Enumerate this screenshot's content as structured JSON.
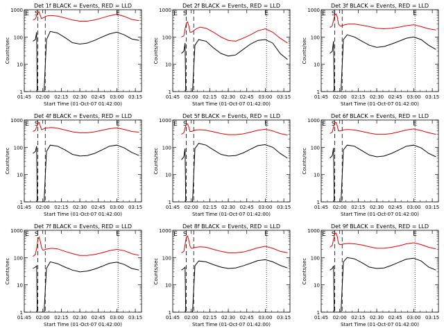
{
  "figure": {
    "ylabel": "Counts/sec",
    "xlabel": "Start Time (01-Oct-07 01:42:00)",
    "xticks": [
      "01:45",
      "02:00",
      "02:15",
      "02:30",
      "02:45",
      "03:00",
      "03:15"
    ],
    "yticks": [
      "1",
      "10",
      "100",
      "1000"
    ],
    "markers": [
      "E",
      "S",
      "E"
    ]
  },
  "colors": {
    "events": "#000000",
    "lld": "#e00000",
    "axis": "#000000",
    "background": "#ffffff"
  },
  "chart_data": [
    {
      "type": "line",
      "title": "Det 1f BLACK = Events, RED = LLD",
      "xlim_min": [
        3,
        98
      ],
      "ylim": [
        1,
        1000
      ],
      "yscale": "log",
      "vlines_dashed_min": [
        14,
        20
      ],
      "vlines_dotted_min": [
        79
      ],
      "series": [
        {
          "name": "Events",
          "x": [
            10,
            12,
            13,
            13.5,
            14,
            16,
            18,
            19,
            21,
            24,
            30,
            36,
            42,
            48,
            54,
            60,
            66,
            72,
            78,
            84,
            90,
            96
          ],
          "y": [
            70,
            80,
            150,
            1,
            1,
            1,
            1,
            1,
            80,
            160,
            140,
            95,
            62,
            55,
            60,
            75,
            100,
            130,
            150,
            120,
            85,
            75
          ]
        },
        {
          "name": "LLD",
          "x": [
            10,
            12,
            13,
            14,
            15,
            16,
            17,
            18,
            19,
            20,
            22,
            25,
            30,
            36,
            42,
            48,
            54,
            60,
            66,
            72,
            78,
            84,
            90,
            96
          ],
          "y": [
            420,
            460,
            600,
            780,
            840,
            620,
            470,
            500,
            520,
            560,
            600,
            620,
            580,
            500,
            420,
            380,
            380,
            420,
            500,
            600,
            680,
            570,
            440,
            400
          ]
        }
      ]
    },
    {
      "type": "line",
      "title": "Det 2f BLACK = Events, RED = LLD",
      "xlim_min": [
        3,
        98
      ],
      "ylim": [
        1,
        1000
      ],
      "yscale": "log",
      "vlines_dashed_min": [
        14,
        20
      ],
      "vlines_dotted_min": [
        79
      ],
      "series": [
        {
          "name": "Events",
          "x": [
            10,
            12,
            13,
            13.5,
            14,
            16,
            18,
            19,
            21,
            24,
            30,
            36,
            42,
            48,
            54,
            60,
            66,
            72,
            78,
            84,
            90,
            96
          ],
          "y": [
            25,
            30,
            60,
            1,
            1,
            1,
            1,
            1,
            50,
            80,
            70,
            40,
            25,
            20,
            22,
            35,
            55,
            75,
            80,
            60,
            25,
            15
          ]
        },
        {
          "name": "LLD",
          "x": [
            10,
            12,
            13,
            14,
            15,
            16,
            17,
            18,
            19,
            20,
            22,
            25,
            30,
            36,
            42,
            48,
            54,
            60,
            66,
            72,
            78,
            84,
            90,
            96
          ],
          "y": [
            100,
            110,
            200,
            320,
            360,
            260,
            150,
            150,
            160,
            170,
            200,
            230,
            210,
            150,
            100,
            75,
            70,
            90,
            120,
            170,
            200,
            150,
            90,
            60
          ]
        }
      ]
    },
    {
      "type": "line",
      "title": "Det 3f BLACK = Events, RED = LLD",
      "xlim_min": [
        3,
        98
      ],
      "ylim": [
        1,
        1000
      ],
      "yscale": "log",
      "vlines_dashed_min": [
        14,
        20
      ],
      "vlines_dotted_min": [
        79
      ],
      "series": [
        {
          "name": "Events",
          "x": [
            10,
            12,
            13,
            13.5,
            14,
            16,
            18,
            19,
            21,
            24,
            30,
            36,
            42,
            48,
            54,
            60,
            66,
            72,
            78,
            84,
            90,
            96
          ],
          "y": [
            25,
            30,
            70,
            1,
            1,
            1,
            1,
            1,
            80,
            120,
            100,
            70,
            50,
            42,
            45,
            55,
            70,
            90,
            100,
            80,
            50,
            35
          ]
        },
        {
          "name": "LLD",
          "x": [
            10,
            12,
            13,
            14,
            15,
            16,
            17,
            18,
            19,
            20,
            22,
            25,
            30,
            36,
            42,
            48,
            54,
            60,
            66,
            72,
            78,
            84,
            90,
            96
          ],
          "y": [
            220,
            260,
            420,
            640,
            700,
            560,
            300,
            260,
            250,
            260,
            280,
            300,
            300,
            270,
            240,
            210,
            200,
            210,
            230,
            260,
            280,
            240,
            200,
            180
          ]
        }
      ]
    },
    {
      "type": "line",
      "title": "Det 4f BLACK = Events, RED = LLD",
      "xlim_min": [
        3,
        98
      ],
      "ylim": [
        1,
        1000
      ],
      "yscale": "log",
      "vlines_dashed_min": [
        14,
        20
      ],
      "vlines_dotted_min": [
        79
      ],
      "series": [
        {
          "name": "Events",
          "x": [
            10,
            12,
            13,
            13.5,
            14,
            16,
            18,
            19,
            21,
            24,
            30,
            36,
            42,
            48,
            54,
            60,
            66,
            72,
            78,
            84,
            90,
            96
          ],
          "y": [
            60,
            70,
            110,
            1,
            1,
            1,
            1,
            1,
            70,
            120,
            110,
            80,
            55,
            48,
            50,
            60,
            80,
            110,
            120,
            95,
            65,
            50
          ]
        },
        {
          "name": "LLD",
          "x": [
            10,
            12,
            13,
            14,
            15,
            16,
            17,
            18,
            19,
            20,
            22,
            25,
            30,
            36,
            42,
            48,
            54,
            60,
            66,
            72,
            78,
            84,
            90,
            96
          ],
          "y": [
            380,
            420,
            560,
            760,
            820,
            600,
            440,
            460,
            480,
            500,
            520,
            530,
            500,
            430,
            370,
            340,
            340,
            370,
            420,
            480,
            520,
            450,
            380,
            360
          ]
        }
      ]
    },
    {
      "type": "line",
      "title": "Det 5f BLACK = Events, RED = LLD",
      "xlim_min": [
        3,
        98
      ],
      "ylim": [
        1,
        1000
      ],
      "yscale": "log",
      "vlines_dashed_min": [
        14,
        20
      ],
      "vlines_dotted_min": [
        79
      ],
      "series": [
        {
          "name": "Events",
          "x": [
            10,
            12,
            13,
            13.5,
            14,
            16,
            18,
            19,
            21,
            24,
            30,
            36,
            42,
            48,
            54,
            60,
            66,
            72,
            78,
            84,
            90,
            96
          ],
          "y": [
            35,
            45,
            90,
            1,
            1,
            1,
            1,
            1,
            90,
            140,
            120,
            80,
            55,
            48,
            50,
            62,
            85,
            115,
            125,
            100,
            60,
            40
          ]
        },
        {
          "name": "LLD",
          "x": [
            10,
            12,
            13,
            14,
            15,
            16,
            17,
            18,
            19,
            20,
            22,
            25,
            30,
            36,
            42,
            48,
            54,
            60,
            66,
            72,
            78,
            84,
            90,
            96
          ],
          "y": [
            300,
            340,
            520,
            700,
            720,
            560,
            380,
            380,
            390,
            410,
            430,
            440,
            420,
            370,
            320,
            290,
            290,
            310,
            360,
            420,
            460,
            400,
            320,
            280
          ]
        }
      ]
    },
    {
      "type": "line",
      "title": "Det 6f BLACK = Events, RED = LLD",
      "xlim_min": [
        3,
        98
      ],
      "ylim": [
        1,
        1000
      ],
      "yscale": "log",
      "vlines_dashed_min": [
        14,
        20
      ],
      "vlines_dotted_min": [
        79
      ],
      "series": [
        {
          "name": "Events",
          "x": [
            10,
            12,
            13,
            13.5,
            14,
            16,
            18,
            19,
            21,
            24,
            30,
            36,
            42,
            48,
            54,
            60,
            66,
            72,
            78,
            84,
            90,
            96
          ],
          "y": [
            40,
            50,
            95,
            1,
            1,
            1,
            1,
            1,
            80,
            120,
            110,
            75,
            52,
            45,
            48,
            60,
            80,
            110,
            120,
            95,
            60,
            45
          ]
        },
        {
          "name": "LLD",
          "x": [
            10,
            12,
            13,
            14,
            15,
            16,
            17,
            18,
            19,
            20,
            22,
            25,
            30,
            36,
            42,
            48,
            54,
            60,
            66,
            72,
            78,
            84,
            90,
            96
          ],
          "y": [
            320,
            360,
            560,
            780,
            820,
            620,
            400,
            400,
            410,
            420,
            440,
            450,
            430,
            380,
            330,
            300,
            300,
            320,
            370,
            430,
            470,
            410,
            340,
            300
          ]
        }
      ]
    },
    {
      "type": "line",
      "title": "Det 7f BLACK = Events, RED = LLD",
      "xlim_min": [
        3,
        98
      ],
      "ylim": [
        1,
        1000
      ],
      "yscale": "log",
      "vlines_dashed_min": [
        14,
        20
      ],
      "vlines_dotted_min": [
        79
      ],
      "series": [
        {
          "name": "Events",
          "x": [
            10,
            12,
            13,
            13.5,
            14,
            16,
            18,
            19,
            21,
            24,
            30,
            36,
            42,
            48,
            54,
            60,
            66,
            72,
            78,
            84,
            90,
            96
          ],
          "y": [
            40,
            45,
            50,
            1,
            1,
            1,
            1,
            1,
            40,
            70,
            60,
            45,
            35,
            30,
            32,
            38,
            48,
            62,
            68,
            56,
            40,
            35
          ]
        },
        {
          "name": "LLD",
          "x": [
            10,
            12,
            13,
            14,
            15,
            16,
            17,
            18,
            19,
            20,
            22,
            25,
            30,
            36,
            42,
            48,
            54,
            60,
            66,
            72,
            78,
            84,
            90,
            96
          ],
          "y": [
            110,
            130,
            220,
            460,
            560,
            400,
            230,
            190,
            190,
            200,
            210,
            220,
            210,
            170,
            140,
            120,
            120,
            130,
            150,
            180,
            200,
            180,
            140,
            120
          ]
        }
      ]
    },
    {
      "type": "line",
      "title": "Det 8f BLACK = Events, RED = LLD",
      "xlim_min": [
        3,
        98
      ],
      "ylim": [
        1,
        1000
      ],
      "yscale": "log",
      "vlines_dashed_min": [
        14,
        20
      ],
      "vlines_dotted_min": [
        79
      ],
      "series": [
        {
          "name": "Events",
          "x": [
            10,
            12,
            13,
            13.5,
            14,
            16,
            18,
            19,
            21,
            24,
            30,
            36,
            42,
            48,
            54,
            60,
            66,
            72,
            78,
            84,
            90,
            96
          ],
          "y": [
            35,
            40,
            45,
            1,
            1,
            1,
            1,
            1,
            50,
            75,
            70,
            55,
            45,
            40,
            42,
            50,
            62,
            78,
            84,
            70,
            52,
            42
          ]
        },
        {
          "name": "LLD",
          "x": [
            10,
            12,
            13,
            14,
            15,
            16,
            17,
            18,
            19,
            20,
            22,
            25,
            30,
            36,
            42,
            48,
            54,
            60,
            66,
            72,
            78,
            84,
            90,
            96
          ],
          "y": [
            150,
            170,
            300,
            560,
            620,
            440,
            260,
            220,
            220,
            230,
            240,
            250,
            240,
            200,
            170,
            150,
            150,
            160,
            190,
            230,
            260,
            220,
            170,
            150
          ]
        }
      ]
    },
    {
      "type": "line",
      "title": "Det 9f BLACK = Events, RED = LLD",
      "xlim_min": [
        3,
        98
      ],
      "ylim": [
        1,
        1000
      ],
      "yscale": "log",
      "vlines_dashed_min": [
        14,
        20
      ],
      "vlines_dotted_min": [
        79
      ],
      "series": [
        {
          "name": "Events",
          "x": [
            10,
            12,
            13,
            13.5,
            14,
            16,
            18,
            19,
            21,
            24,
            30,
            36,
            42,
            48,
            54,
            60,
            66,
            72,
            78,
            84,
            90,
            96
          ],
          "y": [
            35,
            40,
            50,
            1,
            1,
            1,
            1,
            1,
            70,
            100,
            90,
            65,
            45,
            40,
            42,
            52,
            68,
            88,
            95,
            75,
            45,
            35
          ]
        },
        {
          "name": "LLD",
          "x": [
            10,
            12,
            13,
            14,
            15,
            16,
            17,
            18,
            19,
            20,
            22,
            25,
            30,
            36,
            42,
            48,
            54,
            60,
            66,
            72,
            78,
            84,
            90,
            96
          ],
          "y": [
            240,
            280,
            480,
            760,
            800,
            600,
            330,
            300,
            300,
            310,
            320,
            330,
            320,
            290,
            250,
            220,
            220,
            240,
            270,
            320,
            350,
            300,
            240,
            210
          ]
        }
      ]
    }
  ]
}
